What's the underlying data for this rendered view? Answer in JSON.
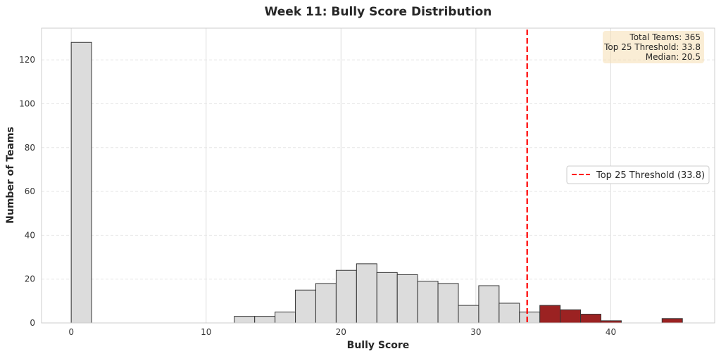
{
  "chart_data": {
    "type": "bar",
    "title": "Week 11: Bully Score Distribution",
    "xlabel": "Bully Score",
    "ylabel": "Number of Teams",
    "xlim": [
      -2.2,
      47.7
    ],
    "ylim": [
      0,
      134.5
    ],
    "xticks": [
      0,
      10,
      20,
      30,
      40
    ],
    "yticks": [
      0,
      20,
      40,
      60,
      80,
      100,
      120
    ],
    "grid": true,
    "bin_width": 1.51,
    "bins": [
      {
        "start": 0.0,
        "count": 128,
        "group": "rest"
      },
      {
        "start": 12.09,
        "count": 3,
        "group": "rest"
      },
      {
        "start": 13.6,
        "count": 3,
        "group": "rest"
      },
      {
        "start": 15.11,
        "count": 5,
        "group": "rest"
      },
      {
        "start": 16.62,
        "count": 15,
        "group": "rest"
      },
      {
        "start": 18.13,
        "count": 18,
        "group": "rest"
      },
      {
        "start": 19.64,
        "count": 24,
        "group": "rest"
      },
      {
        "start": 21.15,
        "count": 27,
        "group": "rest"
      },
      {
        "start": 22.66,
        "count": 23,
        "group": "rest"
      },
      {
        "start": 24.17,
        "count": 22,
        "group": "rest"
      },
      {
        "start": 25.68,
        "count": 19,
        "group": "rest"
      },
      {
        "start": 27.19,
        "count": 18,
        "group": "rest"
      },
      {
        "start": 28.7,
        "count": 8,
        "group": "rest"
      },
      {
        "start": 30.21,
        "count": 17,
        "group": "rest"
      },
      {
        "start": 31.72,
        "count": 9,
        "group": "rest"
      },
      {
        "start": 33.23,
        "count": 5,
        "group": "rest"
      },
      {
        "start": 34.74,
        "count": 8,
        "group": "top25"
      },
      {
        "start": 36.25,
        "count": 6,
        "group": "top25"
      },
      {
        "start": 37.76,
        "count": 4,
        "group": "top25"
      },
      {
        "start": 39.27,
        "count": 1,
        "group": "top25"
      },
      {
        "start": 43.8,
        "count": 2,
        "group": "top25"
      }
    ],
    "threshold": {
      "value": 33.8,
      "label": "Top 25 Threshold (33.8)",
      "color": "#ff0000",
      "style": "dashed"
    },
    "legend_placement": "center-right",
    "annotation": {
      "lines": [
        "Total Teams: 365",
        "Top 25 Threshold: 33.8",
        "Median: 20.5"
      ],
      "placement": "top-right",
      "background": "#f5deb3"
    },
    "colors": {
      "rest_fill": "#dcdcdc",
      "top25_fill": "#9b2222",
      "bar_edge": "#333333",
      "grid": "#e6e6e6"
    }
  }
}
